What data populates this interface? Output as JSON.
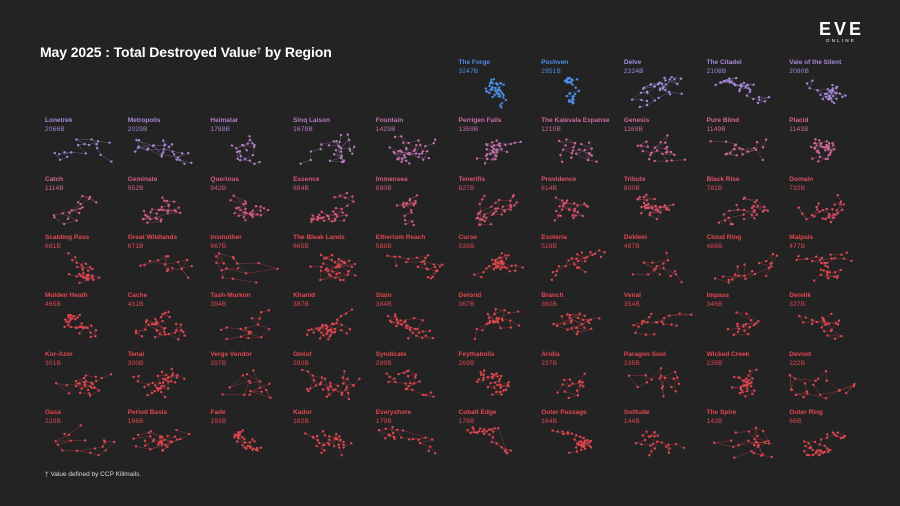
{
  "colors": {
    "background": "#232324",
    "title": "#ffffff",
    "footnote": "#d8d8d8",
    "blue": "#4c8fe6",
    "lavender": "#9d90e2",
    "pink": "#cf6aa0",
    "red": "#e2474f"
  },
  "logo": {
    "wordmark": "EVE",
    "wordmark_sub": "ONLINE"
  },
  "footnote": {
    "mark": "†",
    "text": "Value defined by CCP Killmails."
  },
  "chart_data": {
    "type": "table",
    "title": "May 2025 : Total Destroyed Value",
    "title_mark": "†",
    "title_suffix": " by Region",
    "unit": "B",
    "regions": [
      {
        "name": "The Forge",
        "value": 3247
      },
      {
        "name": "Pochven",
        "value": 2951
      },
      {
        "name": "Delve",
        "value": 2324
      },
      {
        "name": "The Citadel",
        "value": 2108
      },
      {
        "name": "Vale of the Silent",
        "value": 2080
      },
      {
        "name": "Lonetrek",
        "value": 2066
      },
      {
        "name": "Metropolis",
        "value": 2029
      },
      {
        "name": "Heimatar",
        "value": 1788
      },
      {
        "name": "Sinq Laison",
        "value": 1679
      },
      {
        "name": "Fountain",
        "value": 1429
      },
      {
        "name": "Perrigen Falls",
        "value": 1359
      },
      {
        "name": "The Kalevala Expanse",
        "value": 1210
      },
      {
        "name": "Genesis",
        "value": 1168
      },
      {
        "name": "Pure Blind",
        "value": 1149
      },
      {
        "name": "Placid",
        "value": 1143
      },
      {
        "name": "Catch",
        "value": 1114
      },
      {
        "name": "Geminate",
        "value": 952
      },
      {
        "name": "Querious",
        "value": 942
      },
      {
        "name": "Essence",
        "value": 884
      },
      {
        "name": "Immensea",
        "value": 880
      },
      {
        "name": "Tenerifis",
        "value": 827
      },
      {
        "name": "Providence",
        "value": 814
      },
      {
        "name": "Tribute",
        "value": 800
      },
      {
        "name": "Black Rise",
        "value": 781
      },
      {
        "name": "Domain",
        "value": 732
      },
      {
        "name": "Scalding Pass",
        "value": 681
      },
      {
        "name": "Great Wildlands",
        "value": 671
      },
      {
        "name": "Insmother",
        "value": 667
      },
      {
        "name": "The Bleak Lands",
        "value": 665
      },
      {
        "name": "Etherium Reach",
        "value": 588
      },
      {
        "name": "Curse",
        "value": 539
      },
      {
        "name": "Esoteria",
        "value": 518
      },
      {
        "name": "Deklein",
        "value": 487
      },
      {
        "name": "Cloud Ring",
        "value": 486
      },
      {
        "name": "Malpais",
        "value": 477
      },
      {
        "name": "Molden Heath",
        "value": 465
      },
      {
        "name": "Cache",
        "value": 431
      },
      {
        "name": "Tash-Murkon",
        "value": 394
      },
      {
        "name": "Khanid",
        "value": 387
      },
      {
        "name": "Stain",
        "value": 384
      },
      {
        "name": "Detorid",
        "value": 367
      },
      {
        "name": "Branch",
        "value": 360
      },
      {
        "name": "Venal",
        "value": 354
      },
      {
        "name": "Impass",
        "value": 346
      },
      {
        "name": "Derelik",
        "value": 327
      },
      {
        "name": "Kor-Azor",
        "value": 301
      },
      {
        "name": "Tenal",
        "value": 300
      },
      {
        "name": "Verge Vendor",
        "value": 297
      },
      {
        "name": "Omist",
        "value": 290
      },
      {
        "name": "Syndicate",
        "value": 289
      },
      {
        "name": "Feythabolis",
        "value": 269
      },
      {
        "name": "Aridia",
        "value": 237
      },
      {
        "name": "Paragon Soul",
        "value": 235
      },
      {
        "name": "Wicked Creek",
        "value": 235
      },
      {
        "name": "Devoid",
        "value": 222
      },
      {
        "name": "Oasa",
        "value": 220
      },
      {
        "name": "Period Basis",
        "value": 196
      },
      {
        "name": "Fade",
        "value": 193
      },
      {
        "name": "Kador",
        "value": 182
      },
      {
        "name": "Everyshore",
        "value": 179
      },
      {
        "name": "Cobalt Edge",
        "value": 178
      },
      {
        "name": "Outer Passage",
        "value": 164
      },
      {
        "name": "Solitude",
        "value": 144
      },
      {
        "name": "The Spire",
        "value": 142
      },
      {
        "name": "Outer Ring",
        "value": 66
      }
    ]
  }
}
